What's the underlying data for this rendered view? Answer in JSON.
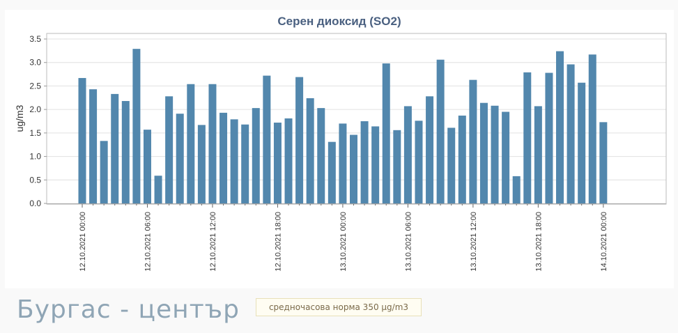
{
  "station": {
    "name": "Бургас - център"
  },
  "norm": {
    "label": "средночасова норма 350 µg/m3"
  },
  "colors": {
    "bar": "#5287ad",
    "title": "#4a6080",
    "grid": "#e0e0e0",
    "axis": "#999999"
  },
  "chart_data": {
    "type": "bar",
    "title": "Серен диоксид (SO2)",
    "xlabel": "",
    "ylabel": "ug/m3",
    "ylim": [
      0,
      3.5
    ],
    "yticks": [
      "0.0",
      "0.5",
      "1.0",
      "1.5",
      "2.0",
      "2.5",
      "3.0",
      "3.5"
    ],
    "xticks": [
      {
        "index": 0,
        "label": "12.10.2021 00:00"
      },
      {
        "index": 6,
        "label": "12.10.2021 06:00"
      },
      {
        "index": 12,
        "label": "12.10.2021 12:00"
      },
      {
        "index": 18,
        "label": "12.10.2021 18:00"
      },
      {
        "index": 24,
        "label": "13.10.2021 00:00"
      },
      {
        "index": 30,
        "label": "13.10.2021 06:00"
      },
      {
        "index": 36,
        "label": "13.10.2021 12:00"
      },
      {
        "index": 42,
        "label": "13.10.2021 18:00"
      },
      {
        "index": 48,
        "label": "14.10.2021 00:00"
      }
    ],
    "values": [
      2.67,
      2.43,
      1.33,
      2.33,
      2.18,
      3.29,
      1.57,
      0.59,
      2.28,
      1.91,
      2.54,
      1.67,
      2.54,
      1.93,
      1.79,
      1.68,
      2.03,
      2.72,
      1.72,
      1.81,
      2.69,
      2.24,
      2.03,
      1.31,
      1.7,
      1.46,
      1.75,
      1.64,
      2.98,
      1.56,
      2.07,
      1.76,
      2.28,
      3.06,
      1.61,
      1.87,
      2.63,
      2.14,
      2.08,
      1.95,
      0.58,
      2.79,
      2.07,
      2.78,
      3.24,
      2.96,
      2.57,
      3.17,
      1.73
    ],
    "grid": true,
    "legend": "none"
  }
}
